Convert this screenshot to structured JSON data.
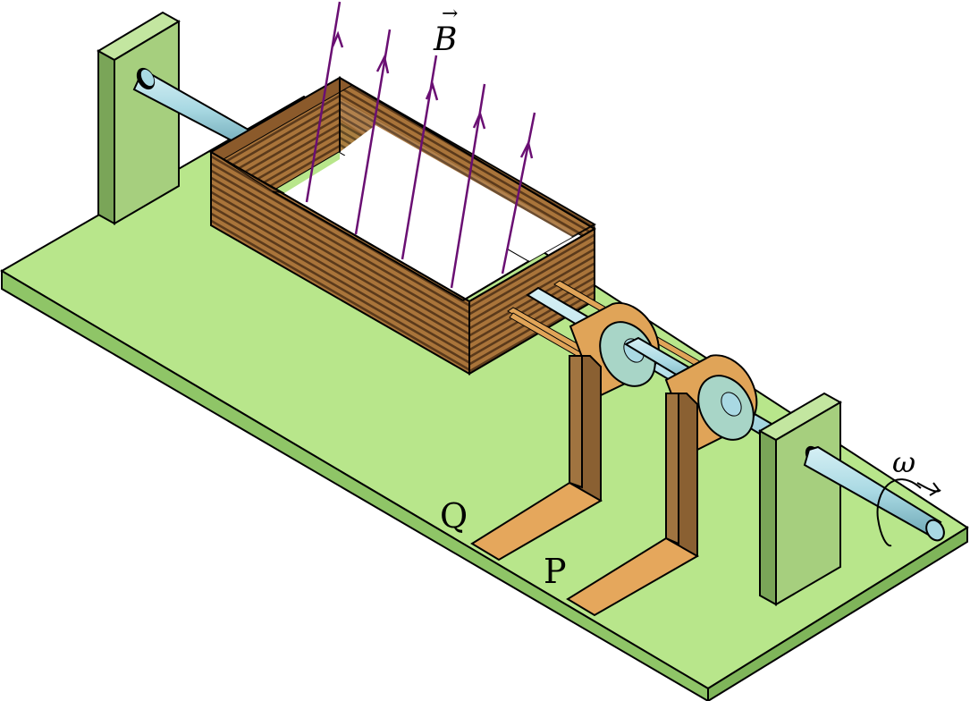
{
  "labels": {
    "field": "B",
    "field_arrow": "→",
    "omega": "ω",
    "q": "Q",
    "p": "P"
  },
  "colors": {
    "base_top": "#b8e68b",
    "base_side": "#8fc567",
    "support_front": "#a6cf7e",
    "support_side": "#7aa558",
    "shaft": "#a9d9e3",
    "coil_stripe_dark": "#5b3a1b",
    "coil_stripe_light": "#a9743a",
    "ring_face": "#a8d5c7",
    "ring_band": "#e0a458",
    "brush_front": "#a07440",
    "brush_foot": "#e5a75c",
    "field_lines": "#6a0f73",
    "outline": "#000000"
  },
  "icons": {
    "omega_rotation": "curved-arrow-rotation-icon",
    "field_vector": "arrow-over-letter"
  }
}
